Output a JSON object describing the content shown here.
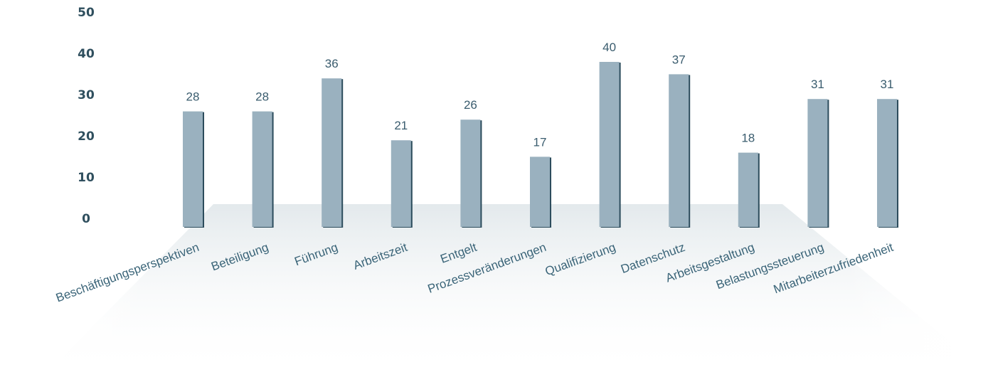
{
  "chart_data": {
    "type": "bar",
    "title": "",
    "xlabel": "",
    "ylabel": "",
    "ylim": [
      0,
      50
    ],
    "yticks": [
      0,
      10,
      20,
      30,
      40,
      50
    ],
    "categories": [
      "Beschäftigungsperspektiven",
      "Beteiligung",
      "Führung",
      "Arbeitszeit",
      "Entgelt",
      "Prozessveränderungen",
      "Qualifizierung",
      "Datenschutz",
      "Arbeitsgestaltung",
      "Belastungssteuerung",
      "Mitarbeiterzufriedenheit"
    ],
    "values": [
      28,
      28,
      36,
      21,
      26,
      17,
      40,
      37,
      18,
      31,
      31
    ],
    "grid": false,
    "legend": "none",
    "colors": {
      "bar": "#9ab1bf",
      "bar_shadow": "#2c4c5c",
      "tick_text": "#2f4f5e",
      "label_text": "#3a6478",
      "floor": "#e6ebee"
    }
  }
}
